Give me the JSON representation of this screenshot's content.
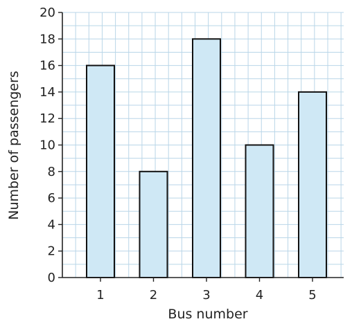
{
  "chart_data": {
    "type": "bar",
    "categories": [
      "1",
      "2",
      "3",
      "4",
      "5"
    ],
    "values": [
      16,
      8,
      18,
      10,
      14
    ],
    "title": "",
    "xlabel": "Bus number",
    "ylabel": "Number of passengers",
    "ylim": [
      0,
      20
    ],
    "yticks": [
      "0",
      "2",
      "4",
      "6",
      "8",
      "10",
      "12",
      "14",
      "16",
      "18",
      "20"
    ],
    "grid": true,
    "colors": {
      "bar_fill": "#cfe8f5",
      "bar_stroke": "#111111",
      "grid": "#b9d6e8",
      "axis": "#222222"
    }
  }
}
